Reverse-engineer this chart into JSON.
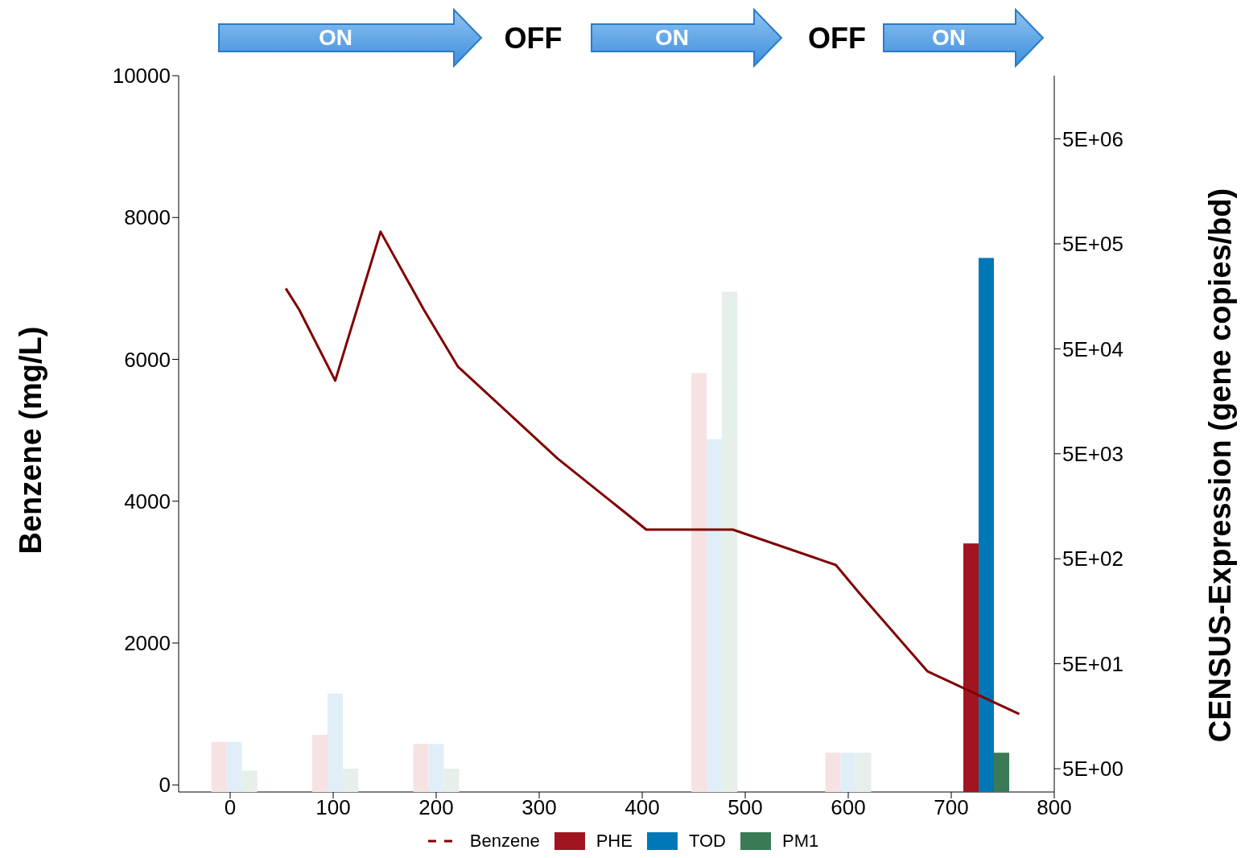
{
  "chart_data": {
    "type": "bar",
    "ylabel": "Benzene (mg/L)",
    "y2label": "CENSUS-Expression (gene copies/bd)",
    "annotations": [
      "ON",
      "OFF",
      "ON",
      "OFF",
      "ON"
    ],
    "xlim": [
      -50,
      800
    ],
    "xticks": [
      0,
      100,
      200,
      300,
      400,
      500,
      600,
      700,
      800
    ],
    "ylim": [
      -100,
      10000
    ],
    "yticks": [
      0,
      2000,
      4000,
      6000,
      8000,
      10000
    ],
    "y2lim": [
      3,
      20000000
    ],
    "y2ticks": [
      {
        "value": 5,
        "label": "5E+00"
      },
      {
        "value": 50,
        "label": "5E+01"
      },
      {
        "value": 500,
        "label": "5E+02"
      },
      {
        "value": 5000,
        "label": "5E+03"
      },
      {
        "value": 50000,
        "label": "5E+04"
      },
      {
        "value": 500000,
        "label": "5E+05"
      },
      {
        "value": 5000000,
        "label": "5E+06"
      }
    ],
    "log": "y2",
    "legend": "bottom",
    "series": [
      {
        "name": "Benzene",
        "type": "line",
        "color": "#800000",
        "x": [
          54,
          67,
          102,
          123,
          146,
          188,
          221,
          318,
          404,
          488,
          588,
          611,
          677,
          766
        ],
        "values": [
          7000,
          6700,
          5700,
          6700,
          7800,
          6700,
          5900,
          4600,
          3600,
          3600,
          3100,
          2700,
          1600,
          1000
        ]
      },
      {
        "name": "PHE",
        "axis": "y2",
        "color": "#a01520",
        "x": [
          4,
          102,
          200,
          470,
          600,
          734
        ],
        "values": [
          9,
          10.5,
          8.6,
          29400,
          7.1,
          700
        ],
        "colors": [
          "#f6e1e3",
          "#f6e1e3",
          "#f6e1e3",
          "#f6e1e3",
          "#f6e1e3",
          "#a01520"
        ]
      },
      {
        "name": "TOD",
        "axis": "y2",
        "color": "#0077b6",
        "x": [
          4,
          102,
          200,
          470,
          600,
          734
        ],
        "values": [
          9,
          26,
          8.6,
          6900,
          7.1,
          367000
        ],
        "colors": [
          "#e0eef7",
          "#e0eef7",
          "#e0eef7",
          "#e0eef7",
          "#e0eef7",
          "#0077b6"
        ]
      },
      {
        "name": "PM1",
        "axis": "y2",
        "color": "#3a7a55",
        "x": [
          4,
          102,
          200,
          470,
          600,
          734
        ],
        "values": [
          4.8,
          5,
          5,
          175000,
          7.1,
          7.1
        ],
        "colors": [
          "#e6efe9",
          "#e6efe9",
          "#e6efe9",
          "#e6efe9",
          "#e6efe9",
          "#3a7a55"
        ]
      }
    ]
  }
}
